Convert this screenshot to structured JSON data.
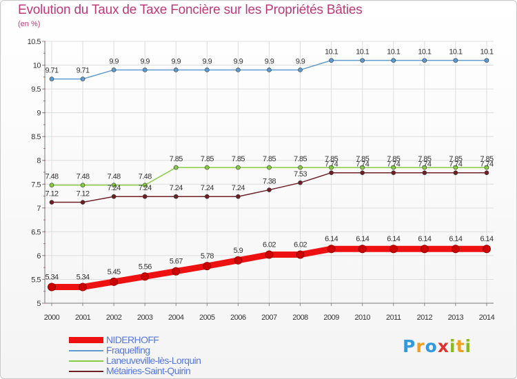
{
  "chart_data": {
    "type": "line",
    "title": "Evolution du Taux de Taxe Foncière sur les Propriétés Bâties",
    "subtitle": "(en %)",
    "xlabel": "",
    "ylabel": "(en %)",
    "ylim": [
      5,
      10.5
    ],
    "y_ticks": [
      "5",
      "5.5",
      "6",
      "6.5",
      "7",
      "7.5",
      "8",
      "8.5",
      "9",
      "9.5",
      "10",
      "10.5"
    ],
    "x": [
      "2000",
      "2001",
      "2002",
      "2003",
      "2004",
      "2005",
      "2006",
      "2007",
      "2008",
      "2009",
      "2010",
      "2011",
      "2012",
      "2013",
      "2014"
    ],
    "series": [
      {
        "name": "Fraquelfing",
        "color": "#5f9bd0",
        "values": [
          9.71,
          9.71,
          9.9,
          9.9,
          9.9,
          9.9,
          9.9,
          9.9,
          9.9,
          10.1,
          10.1,
          10.1,
          10.1,
          10.1,
          10.1
        ],
        "labels": [
          "9.71",
          "9.71",
          "9.9",
          "9.9",
          "9.9",
          "9.9",
          "9.9",
          "9.9",
          "9.9",
          "10.1",
          "10.1",
          "10.1",
          "10.1",
          "10.1",
          "10.1"
        ]
      },
      {
        "name": "Laneuveville-lès-Lorquin",
        "color": "#88cc44",
        "values": [
          7.48,
          7.48,
          7.48,
          7.48,
          7.85,
          7.85,
          7.85,
          7.85,
          7.85,
          7.85,
          7.85,
          7.85,
          7.85,
          7.85,
          7.85
        ],
        "labels": [
          "7.48",
          "7.48",
          "7.48",
          "7.48",
          "7.85",
          "7.85",
          "7.85",
          "7.85",
          "7.85",
          "7.85",
          "7.85",
          "7.85",
          "7.85",
          "7.85",
          "7.85"
        ]
      },
      {
        "name": "Métairies-Saint-Quirin",
        "color": "#6e1f26",
        "values": [
          7.12,
          7.12,
          7.24,
          7.24,
          7.24,
          7.24,
          7.24,
          7.38,
          7.53,
          7.74,
          7.74,
          7.74,
          7.74,
          7.74,
          7.74
        ],
        "labels": [
          "7.12",
          "7.12",
          "7.24",
          "7.24",
          "7.24",
          "7.24",
          "7.24",
          "7.38",
          "7.53",
          "7.74",
          "7.74",
          "7.74",
          "7.74",
          "7.74",
          "7.74"
        ]
      },
      {
        "name": "NIDERHOFF",
        "color": "#ee1111",
        "values": [
          5.34,
          5.34,
          5.45,
          5.56,
          5.67,
          5.78,
          5.9,
          6.02,
          6.02,
          6.14,
          6.14,
          6.14,
          6.14,
          6.14,
          6.14
        ],
        "labels": [
          "5.34",
          "5.34",
          "5.45",
          "5.56",
          "5.67",
          "5.78",
          "5.9",
          "6.02",
          "6.02",
          "6.14",
          "6.14",
          "6.14",
          "6.14",
          "6.14",
          "6.14"
        ]
      }
    ]
  },
  "legend": [
    {
      "name": "NIDERHOFF",
      "color": "#ee1111",
      "text_color": "#5577dd"
    },
    {
      "name": "Fraquelfing",
      "color": "#5f9bd0",
      "text_color": "#5577dd"
    },
    {
      "name": "Laneuveville-lès-Lorquin",
      "color": "#88cc44",
      "text_color": "#5577dd"
    },
    {
      "name": "Métairies-Saint-Quirin",
      "color": "#6e1f26",
      "text_color": "#5577dd"
    }
  ],
  "logo": {
    "text": "Proxiti",
    "letters": [
      "P",
      "r",
      "o",
      "x",
      "i",
      "t",
      "i"
    ],
    "colors": [
      "#3399dd",
      "#f0a020",
      "#3399dd",
      "#dd3333",
      "#88bb22",
      "#f0a020",
      "#88bb22"
    ]
  }
}
